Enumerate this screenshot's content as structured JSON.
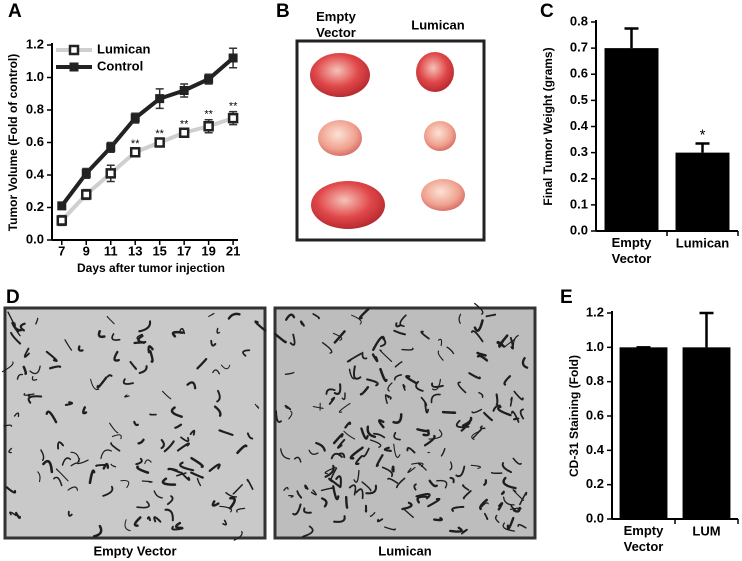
{
  "chart_data": [
    {
      "panel": "A",
      "type": "line",
      "ylabel": "Tumor Volume (Fold of control)",
      "xlabel": "Days after tumor injection",
      "x": [
        7,
        9,
        11,
        13,
        15,
        17,
        19,
        21
      ],
      "xlim": [
        6.2,
        21.4
      ],
      "xticks": [
        7,
        9,
        11,
        13,
        15,
        17,
        19,
        21
      ],
      "ylim": [
        0,
        1.2
      ],
      "yticks": [
        {
          "value": 0,
          "label": "0.0"
        },
        0.2,
        0.4,
        0.6,
        0.8,
        {
          "value": 1,
          "label": "1.0"
        },
        1.2
      ],
      "series": [
        {
          "name": "Lumican",
          "color": "#cfcfcf",
          "marker": "square-open",
          "values": [
            0.12,
            0.28,
            0.41,
            0.54,
            0.6,
            0.66,
            0.7,
            0.75
          ],
          "errors": [
            0.03,
            0.03,
            0.05,
            0.02,
            0.02,
            0.02,
            0.04,
            0.04
          ],
          "annotations": [
            null,
            null,
            null,
            "**",
            "**",
            "**",
            "**",
            "**"
          ]
        },
        {
          "name": "Control",
          "color": "#222222",
          "marker": "square",
          "values": [
            0.21,
            0.41,
            0.57,
            0.75,
            0.87,
            0.92,
            0.99,
            1.12
          ],
          "errors": [
            0.02,
            0.03,
            0.03,
            0.03,
            0.06,
            0.04,
            0.03,
            0.06
          ]
        }
      ]
    },
    {
      "panel": "C",
      "type": "bar",
      "ylabel": "Final Tumor Weight (grams)",
      "color": "#000000",
      "categories": [
        "Empty Vector",
        "Lumican"
      ],
      "values": [
        0.7,
        0.3
      ],
      "errors": [
        0.075,
        0.035
      ],
      "annotations": [
        null,
        "*"
      ],
      "ylim": [
        0,
        0.8
      ],
      "yticks": [
        {
          "value": 0,
          "label": "0.0"
        },
        0.1,
        0.2,
        0.3,
        0.4,
        0.5,
        0.6,
        0.7,
        0.8
      ]
    },
    {
      "panel": "E",
      "type": "bar",
      "ylabel": "CD-31 Staining (Fold)",
      "color": "#000000",
      "categories": [
        "Empty Vector",
        "LUM"
      ],
      "values": [
        1.0,
        1.0
      ],
      "errors": [
        0,
        0.2
      ],
      "ylim": [
        0,
        1.2
      ],
      "yticks": [
        {
          "value": 0,
          "label": "0.0"
        },
        0.2,
        0.4,
        0.6,
        0.8,
        {
          "value": 1,
          "label": "1.0"
        },
        1.2
      ]
    }
  ],
  "images": [
    {
      "panel": "B",
      "labels": [
        "Empty Vector",
        "Lumican"
      ]
    },
    {
      "panel": "D",
      "labels": [
        "Empty Vector",
        "Lumican"
      ]
    }
  ]
}
